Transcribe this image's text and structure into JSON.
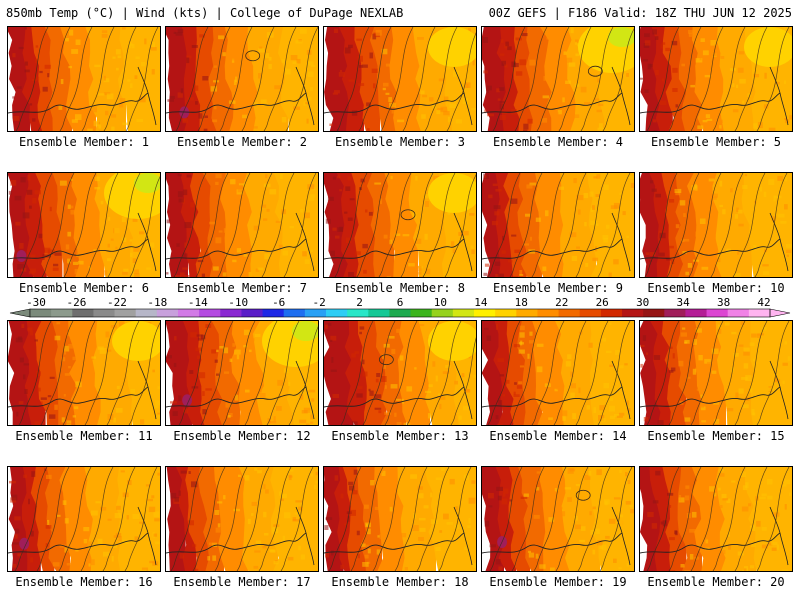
{
  "header": {
    "title_left": "850mb Temp (°C) | Wind (kts) | College of DuPage NEXLAB",
    "title_right": "00Z GEFS | F186 Valid: 18Z THU JUN 12 2025"
  },
  "colorbar": {
    "tick_labels": [
      "-30",
      "-26",
      "-22",
      "-18",
      "-14",
      "-10",
      "-6",
      "-2",
      "2",
      "6",
      "10",
      "14",
      "18",
      "22",
      "26",
      "30",
      "34",
      "38",
      "42"
    ],
    "colors": [
      "#7b8a7b",
      "#8c9a8c",
      "#6e6e6e",
      "#8a8a8a",
      "#a0a0a0",
      "#b6b6c8",
      "#c8a0dc",
      "#d27ae6",
      "#b44be1",
      "#8a28d2",
      "#5a1ec8",
      "#1e28e6",
      "#1e6ef0",
      "#28a0f5",
      "#2dcdf5",
      "#28e6c8",
      "#14c896",
      "#1eaa50",
      "#3cb41e",
      "#96d21e",
      "#d2e614",
      "#fff000",
      "#ffd200",
      "#ffaa00",
      "#ff8c00",
      "#f26a00",
      "#e64b00",
      "#d22800",
      "#b41414",
      "#961414",
      "#a01e5a",
      "#b41e96",
      "#dc46d2",
      "#f082e6",
      "#ffb4f0"
    ]
  },
  "panels": [
    {
      "label": "Ensemble Member: 1"
    },
    {
      "label": "Ensemble Member: 2"
    },
    {
      "label": "Ensemble Member: 3"
    },
    {
      "label": "Ensemble Member: 4"
    },
    {
      "label": "Ensemble Member: 5"
    },
    {
      "label": "Ensemble Member: 6"
    },
    {
      "label": "Ensemble Member: 7"
    },
    {
      "label": "Ensemble Member: 8"
    },
    {
      "label": "Ensemble Member: 9"
    },
    {
      "label": "Ensemble Member: 10"
    },
    {
      "label": "Ensemble Member: 11"
    },
    {
      "label": "Ensemble Member: 12"
    },
    {
      "label": "Ensemble Member: 13"
    },
    {
      "label": "Ensemble Member: 14"
    },
    {
      "label": "Ensemble Member: 15"
    },
    {
      "label": "Ensemble Member: 16"
    },
    {
      "label": "Ensemble Member: 17"
    },
    {
      "label": "Ensemble Member: 18"
    },
    {
      "label": "Ensemble Member: 19"
    },
    {
      "label": "Ensemble Member: 20"
    }
  ]
}
